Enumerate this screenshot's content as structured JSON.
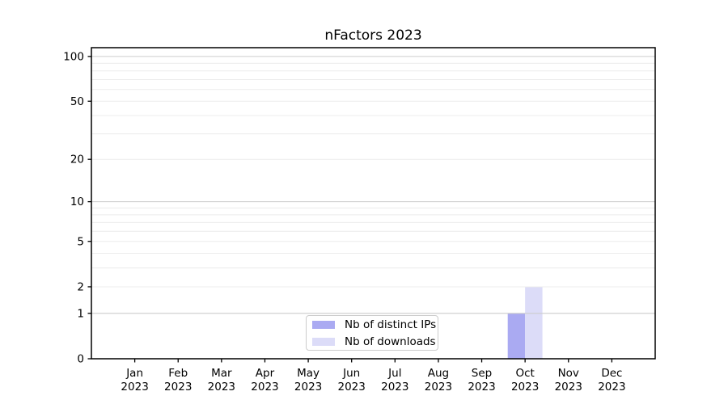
{
  "title": "nFactors 2023",
  "chart_data": {
    "type": "bar",
    "title": "nFactors 2023",
    "categories": [
      "Jan 2023",
      "Feb 2023",
      "Mar 2023",
      "Apr 2023",
      "May 2023",
      "Jun 2023",
      "Jul 2023",
      "Aug 2023",
      "Sep 2023",
      "Oct 2023",
      "Nov 2023",
      "Dec 2023"
    ],
    "series": [
      {
        "name": "Nb of distinct IPs",
        "color": "#aaaaf2",
        "values": [
          0,
          0,
          0,
          0,
          0,
          0,
          0,
          0,
          0,
          1,
          0,
          0
        ]
      },
      {
        "name": "Nb of downloads",
        "color": "#dcdcf8",
        "values": [
          0,
          0,
          0,
          0,
          0,
          0,
          0,
          0,
          0,
          2,
          0,
          0
        ]
      }
    ],
    "xlabel": "",
    "ylabel": "",
    "y_axis": {
      "scale": "log1p",
      "tick_values": [
        0,
        1,
        2,
        5,
        10,
        20,
        50,
        100
      ],
      "major_grid_values": [
        1,
        10,
        100
      ],
      "minor_grid_values": [
        2,
        3,
        4,
        5,
        6,
        7,
        8,
        9,
        20,
        30,
        40,
        50,
        60,
        70,
        80,
        90
      ],
      "ylim": [
        0,
        114.5
      ]
    },
    "legend_position": "lower center",
    "grid": true
  },
  "style": {
    "major_grid_color": "#cccccc",
    "minor_grid_color": "#ececec",
    "axis_color": "#000000",
    "text_color": "#000000",
    "background_color": "#ffffff"
  }
}
